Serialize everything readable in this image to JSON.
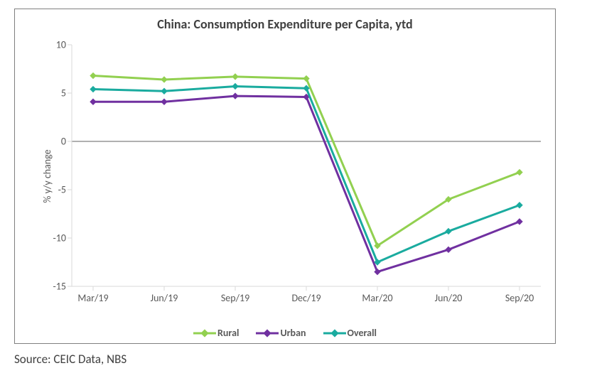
{
  "chart": {
    "type": "line",
    "title": "China: Consumption Expenditure per Capita, ytd",
    "title_fontsize": 18,
    "title_color": "#404040",
    "border_color": "#7f7f7f",
    "background_color": "#ffffff",
    "ylabel": "% y/y change",
    "ylabel_fontsize": 14,
    "axis_label_color": "#595959",
    "tick_fontsize": 14,
    "tick_color": "#595959",
    "xticks": [
      "Mar/19",
      "Jun/19",
      "Sep/19",
      "Dec/19",
      "Mar/20",
      "Jun/20",
      "Sep/20"
    ],
    "ylim": [
      -15,
      10
    ],
    "ytick_step": 5,
    "yticks": [
      -15,
      -10,
      -5,
      0,
      5,
      10
    ],
    "zero_line_color": "#808080",
    "zero_line_width": 1.2,
    "grid_color": "#d9d9d9",
    "grid_width": 1,
    "line_width": 3,
    "marker": "diamond",
    "marker_size": 8,
    "series": [
      {
        "name": "Rural",
        "color": "#92d050",
        "values": [
          6.8,
          6.4,
          6.7,
          6.5,
          -10.8,
          -6.0,
          -3.2
        ]
      },
      {
        "name": "Urban",
        "color": "#7030a0",
        "values": [
          4.1,
          4.1,
          4.7,
          4.6,
          -13.5,
          -11.2,
          -8.3
        ]
      },
      {
        "name": "Overall",
        "color": "#1aab9f",
        "values": [
          5.4,
          5.2,
          5.7,
          5.5,
          -12.5,
          -9.3,
          -6.6
        ]
      }
    ],
    "legend_fontsize": 14,
    "legend_weight": "bold",
    "legend_position": "bottom-center"
  },
  "source": {
    "label": "Source: CEIC Data, NBS",
    "fontsize": 17,
    "color": "#404040"
  }
}
